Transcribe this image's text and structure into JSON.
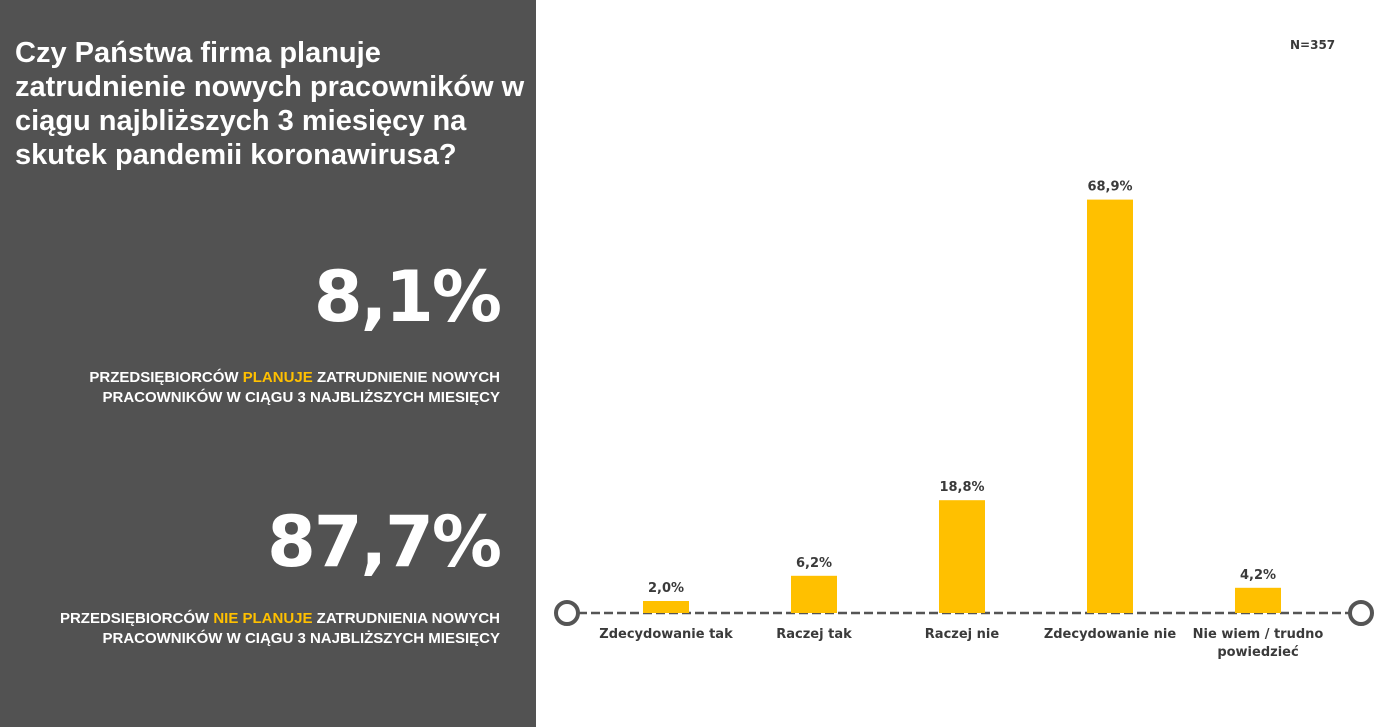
{
  "panel": {
    "question": "Czy Państwa firma planuje zatrudnienie nowych pracowników w ciągu najbliższych 3 miesięcy na skutek pandemii koronawirusa?",
    "stat1": {
      "value": "8,1%",
      "caption_pre": "PRZEDSIĘBIORCÓW ",
      "caption_highlight": "PLANUJE",
      "caption_post": " ZATRUDNIENIE NOWYCH PRACOWNIKÓW W CIĄGU 3 NAJBLIŻSZYCH MIESIĘCY"
    },
    "stat2": {
      "value": "87,7%",
      "caption_pre": "PRZEDSIĘBIORCÓW ",
      "caption_highlight": "NIE PLANUJE",
      "caption_post": " ZATRUDNIENIA NOWYCH PRACOWNIKÓW W CIĄGU 3 NAJBLIŻSZYCH MIESIĘCY"
    }
  },
  "sample_size": "N=357",
  "colors": {
    "panel_bg": "#525252",
    "bar": "#ffc000",
    "highlight": "#ffc000",
    "text_dark": "#3a3a3a",
    "axis": "#555555"
  },
  "chart_data": {
    "type": "bar",
    "categories": [
      "Zdecydowanie tak",
      "Raczej tak",
      "Raczej nie",
      "Zdecydowanie nie",
      "Nie wiem / trudno powiedzieć"
    ],
    "values": [
      2.0,
      6.2,
      18.8,
      68.9,
      4.2
    ],
    "value_labels": [
      "2,0%",
      "6,2%",
      "18,8%",
      "68,9%",
      "4,2%"
    ],
    "ylim": [
      0,
      70
    ],
    "grid": false,
    "legend": "none"
  }
}
